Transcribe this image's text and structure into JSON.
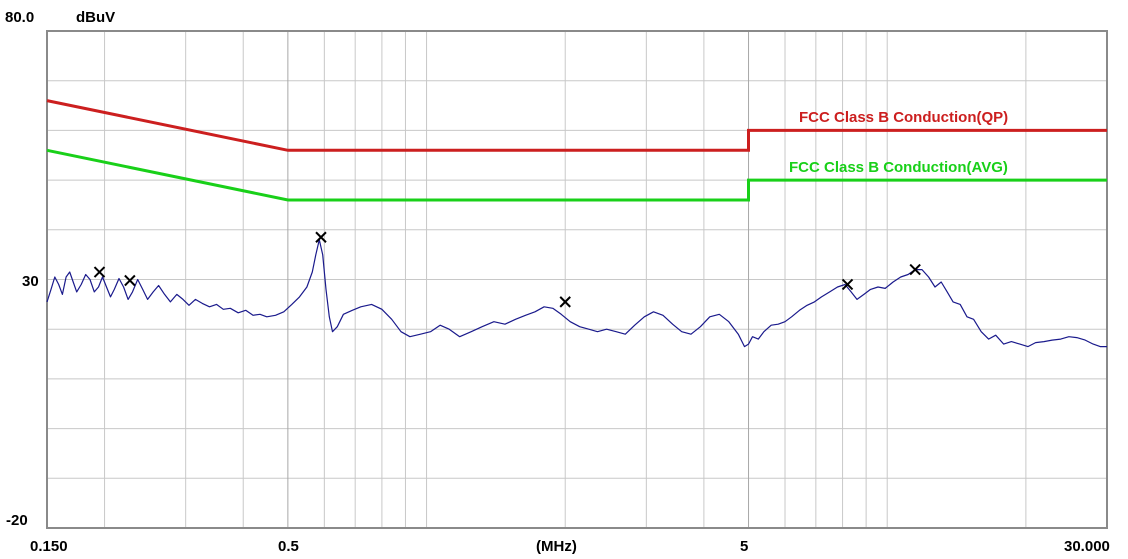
{
  "chart_data": {
    "type": "line",
    "title": "",
    "y_unit": "dBuV",
    "x_unit": "(MHz)",
    "xscale": "log",
    "xlim": [
      0.15,
      30
    ],
    "ylim": [
      -20,
      80
    ],
    "y_tick_labels": [
      "80.0",
      "30",
      "-20"
    ],
    "x_tick_labels": [
      "0.150",
      "0.5",
      "(MHz)",
      "5",
      "30.000"
    ],
    "grid": true,
    "colors": {
      "qp_limit": "#cc1f1f",
      "avg_limit": "#19d019",
      "trace": "#1a1a8c",
      "marker": "#000000",
      "grid": "#c8c8c8",
      "frame": "#8a8a8a"
    },
    "limits": [
      {
        "name": "FCC Class B Conduction(QP)",
        "points": [
          [
            0.15,
            66
          ],
          [
            0.5,
            56
          ],
          [
            5,
            56
          ],
          [
            5,
            60
          ],
          [
            30,
            60
          ]
        ]
      },
      {
        "name": "FCC Class B Conduction(AVG)",
        "points": [
          [
            0.15,
            56
          ],
          [
            0.5,
            46
          ],
          [
            5,
            46
          ],
          [
            5,
            50
          ],
          [
            30,
            50
          ]
        ]
      }
    ],
    "series": [
      {
        "values": [
          [
            0.15,
            25.5
          ],
          [
            0.153,
            28.0
          ],
          [
            0.156,
            30.5
          ],
          [
            0.159,
            29.0
          ],
          [
            0.162,
            27.0
          ],
          [
            0.165,
            30.5
          ],
          [
            0.168,
            31.5
          ],
          [
            0.171,
            29.5
          ],
          [
            0.174,
            27.5
          ],
          [
            0.178,
            29.0
          ],
          [
            0.182,
            31.0
          ],
          [
            0.186,
            30.0
          ],
          [
            0.19,
            27.5
          ],
          [
            0.194,
            28.5
          ],
          [
            0.198,
            30.5
          ],
          [
            0.202,
            28.5
          ],
          [
            0.206,
            26.5
          ],
          [
            0.21,
            28.0
          ],
          [
            0.215,
            30.2
          ],
          [
            0.22,
            28.5
          ],
          [
            0.225,
            26.0
          ],
          [
            0.23,
            27.5
          ],
          [
            0.236,
            30.0
          ],
          [
            0.242,
            28.0
          ],
          [
            0.248,
            26.0
          ],
          [
            0.255,
            27.5
          ],
          [
            0.262,
            28.8
          ],
          [
            0.27,
            27.0
          ],
          [
            0.278,
            25.5
          ],
          [
            0.287,
            27.0
          ],
          [
            0.296,
            26.0
          ],
          [
            0.305,
            24.8
          ],
          [
            0.315,
            26.0
          ],
          [
            0.326,
            25.2
          ],
          [
            0.338,
            24.5
          ],
          [
            0.35,
            25.0
          ],
          [
            0.362,
            24.0
          ],
          [
            0.375,
            24.2
          ],
          [
            0.39,
            23.3
          ],
          [
            0.405,
            23.8
          ],
          [
            0.42,
            22.8
          ],
          [
            0.435,
            23.0
          ],
          [
            0.45,
            22.5
          ],
          [
            0.47,
            22.8
          ],
          [
            0.49,
            23.5
          ],
          [
            0.51,
            25.0
          ],
          [
            0.53,
            26.5
          ],
          [
            0.55,
            28.5
          ],
          [
            0.565,
            31.5
          ],
          [
            0.575,
            35.0
          ],
          [
            0.585,
            38.0
          ],
          [
            0.595,
            35.0
          ],
          [
            0.605,
            28.0
          ],
          [
            0.615,
            22.5
          ],
          [
            0.625,
            19.5
          ],
          [
            0.64,
            20.5
          ],
          [
            0.66,
            23.0
          ],
          [
            0.69,
            23.8
          ],
          [
            0.72,
            24.5
          ],
          [
            0.76,
            25.0
          ],
          [
            0.8,
            24.0
          ],
          [
            0.84,
            22.0
          ],
          [
            0.88,
            19.5
          ],
          [
            0.92,
            18.5
          ],
          [
            0.97,
            19.0
          ],
          [
            1.02,
            19.5
          ],
          [
            1.07,
            20.8
          ],
          [
            1.12,
            20.0
          ],
          [
            1.18,
            18.5
          ],
          [
            1.25,
            19.5
          ],
          [
            1.32,
            20.5
          ],
          [
            1.4,
            21.5
          ],
          [
            1.48,
            21.0
          ],
          [
            1.56,
            22.0
          ],
          [
            1.64,
            22.8
          ],
          [
            1.72,
            23.5
          ],
          [
            1.8,
            24.5
          ],
          [
            1.88,
            24.2
          ],
          [
            1.96,
            23.0
          ],
          [
            2.05,
            21.5
          ],
          [
            2.15,
            20.5
          ],
          [
            2.25,
            20.0
          ],
          [
            2.35,
            19.5
          ],
          [
            2.46,
            20.0
          ],
          [
            2.58,
            19.5
          ],
          [
            2.7,
            19.0
          ],
          [
            2.83,
            20.8
          ],
          [
            2.97,
            22.5
          ],
          [
            3.11,
            23.5
          ],
          [
            3.26,
            22.8
          ],
          [
            3.42,
            21.0
          ],
          [
            3.58,
            19.5
          ],
          [
            3.75,
            19.0
          ],
          [
            3.93,
            20.5
          ],
          [
            4.12,
            22.5
          ],
          [
            4.32,
            23.0
          ],
          [
            4.53,
            21.5
          ],
          [
            4.75,
            19.0
          ],
          [
            4.9,
            16.5
          ],
          [
            5.0,
            17.0
          ],
          [
            5.1,
            18.5
          ],
          [
            5.25,
            18.0
          ],
          [
            5.4,
            19.5
          ],
          [
            5.6,
            20.8
          ],
          [
            5.8,
            21.0
          ],
          [
            6.0,
            21.5
          ],
          [
            6.2,
            22.5
          ],
          [
            6.45,
            23.8
          ],
          [
            6.7,
            24.8
          ],
          [
            6.95,
            25.5
          ],
          [
            7.2,
            26.5
          ],
          [
            7.5,
            27.5
          ],
          [
            7.8,
            28.5
          ],
          [
            8.1,
            29.0
          ],
          [
            8.35,
            27.5
          ],
          [
            8.6,
            26.0
          ],
          [
            8.9,
            27.0
          ],
          [
            9.2,
            28.0
          ],
          [
            9.55,
            28.5
          ],
          [
            9.9,
            28.2
          ],
          [
            10.3,
            29.5
          ],
          [
            10.7,
            30.5
          ],
          [
            11.1,
            31.0
          ],
          [
            11.5,
            32.0
          ],
          [
            11.9,
            32.0
          ],
          [
            12.3,
            30.5
          ],
          [
            12.7,
            28.5
          ],
          [
            13.1,
            29.5
          ],
          [
            13.5,
            27.5
          ],
          [
            13.9,
            25.5
          ],
          [
            14.4,
            25.0
          ],
          [
            14.9,
            22.5
          ],
          [
            15.4,
            22.0
          ],
          [
            16.0,
            19.5
          ],
          [
            16.6,
            18.0
          ],
          [
            17.2,
            18.8
          ],
          [
            17.9,
            17.0
          ],
          [
            18.6,
            17.5
          ],
          [
            19.4,
            17.0
          ],
          [
            20.2,
            16.5
          ],
          [
            21.0,
            17.3
          ],
          [
            21.9,
            17.5
          ],
          [
            22.8,
            17.8
          ],
          [
            23.8,
            18.0
          ],
          [
            24.8,
            18.5
          ],
          [
            25.8,
            18.3
          ],
          [
            26.9,
            17.8
          ],
          [
            28.0,
            17.0
          ],
          [
            29.0,
            16.5
          ],
          [
            30.0,
            16.5
          ]
        ]
      }
    ],
    "markers": [
      [
        0.195,
        31.5
      ],
      [
        0.227,
        29.8
      ],
      [
        0.59,
        38.5
      ],
      [
        2.0,
        25.5
      ],
      [
        8.2,
        29.0
      ],
      [
        11.5,
        32.0
      ]
    ]
  }
}
